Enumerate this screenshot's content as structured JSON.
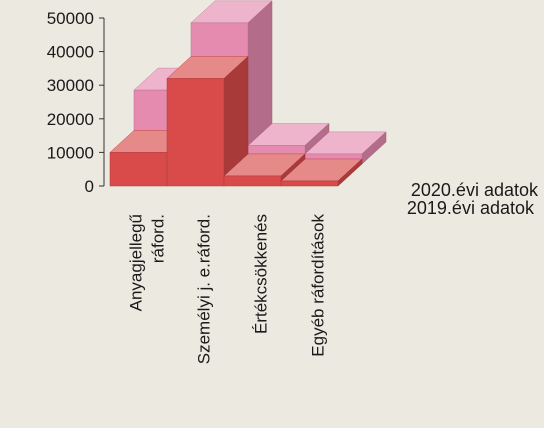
{
  "chart_data": {
    "type": "bar",
    "style": "3d-stacked-depth",
    "categories": [
      "Anyagjellegű ráford.",
      "Személyi j. e.ráford.",
      "Értékcsökkenés",
      "Egyéb ráfordítások"
    ],
    "category_lines": [
      [
        "Anyagjellegű",
        "ráford."
      ],
      [
        "Személyi j. e.ráford."
      ],
      [
        "Értékcsökkenés"
      ],
      [
        "Egyéb ráfordítások"
      ]
    ],
    "series": [
      {
        "name": "2019.évi adatok",
        "values": [
          10000,
          32000,
          3000,
          1500
        ],
        "color": "#d94a4a"
      },
      {
        "name": "2020.évi adatok",
        "values": [
          22000,
          42000,
          5500,
          3000
        ],
        "color": "#e58bb0"
      }
    ],
    "yticks": [
      "50000",
      "40000",
      "30000",
      "20000",
      "10000",
      "0"
    ],
    "ylim": [
      0,
      50000
    ],
    "legend": "right",
    "grid": false
  }
}
